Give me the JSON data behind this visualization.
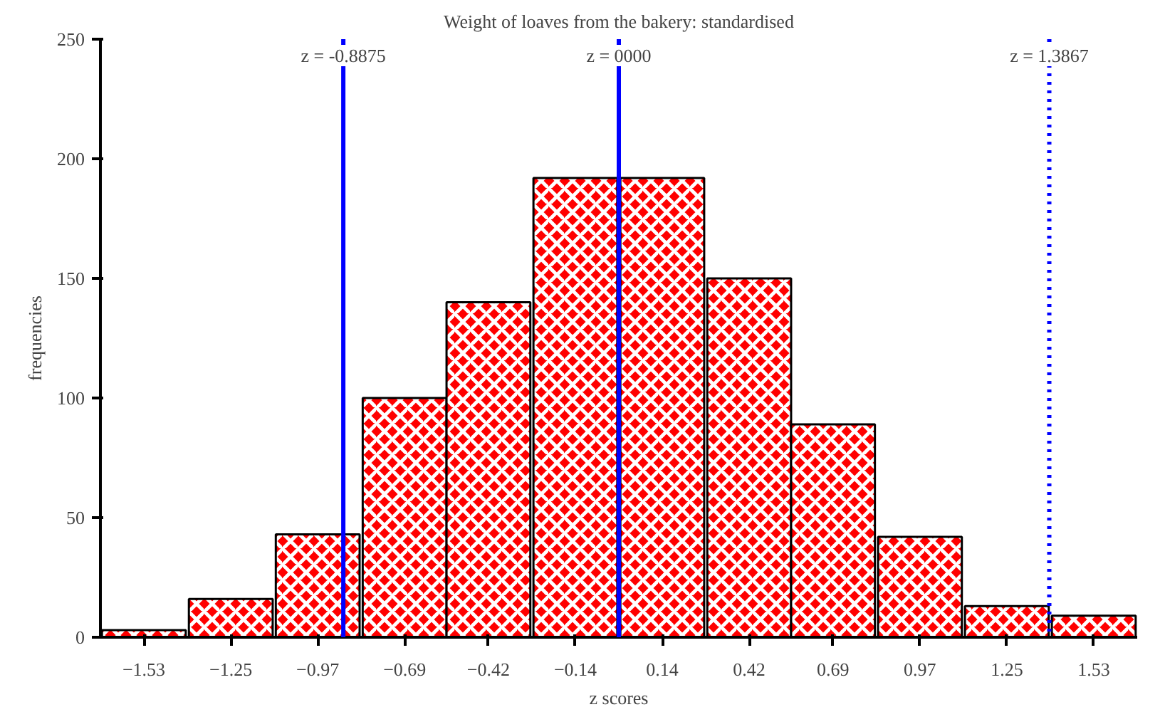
{
  "chart_data": {
    "type": "bar",
    "title": "Weight of loaves from the bakery: standardised",
    "xlabel": "z scores",
    "ylabel": "frequencies",
    "x": [
      -1.53,
      -1.25,
      -0.97,
      -0.69,
      -0.42,
      -0.14,
      0.14,
      0.42,
      0.69,
      0.97,
      1.25,
      1.53
    ],
    "values": [
      3,
      16,
      43,
      100,
      140,
      192,
      192,
      150,
      89,
      42,
      13,
      9
    ],
    "color": "#ff0000",
    "xlim": [
      -1.67,
      1.67
    ],
    "xticks": [
      -1.53,
      -1.25,
      -0.97,
      -0.69,
      -0.42,
      -0.14,
      0.14,
      0.42,
      0.69,
      0.97,
      1.25,
      1.53
    ],
    "ylim": [
      0,
      250
    ],
    "yticks": [
      0,
      50,
      100,
      150,
      200,
      250
    ],
    "grid": false,
    "ref_lines": [
      {
        "axis": "x",
        "value": -0.8875,
        "label": "z = -0.8875",
        "color": "#0000ff",
        "line_style": "solid"
      },
      {
        "axis": "x",
        "value": 0,
        "label": "z = 0000",
        "color": "#0000ff",
        "line_style": "solid"
      },
      {
        "axis": "x",
        "value": 1.3867,
        "label": "z = 1.3867",
        "color": "#0000ff",
        "line_style": "dotted"
      }
    ]
  }
}
